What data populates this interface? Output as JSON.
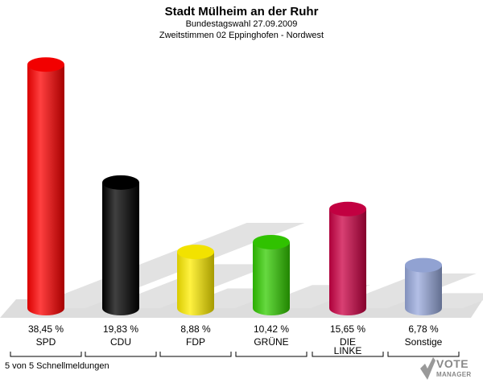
{
  "header": {
    "title": "Stadt Mülheim an der Ruhr",
    "subtitle1": "Bundestagswahl 27.09.2009",
    "subtitle2": "Zweitstimmen 02 Eppinghofen - Nordwest"
  },
  "footer": {
    "status": "5 von 5 Schnellmeldungen"
  },
  "logo": {
    "line1": "VOTE",
    "line2": "MANAGER"
  },
  "chart_data": {
    "type": "bar",
    "categories": [
      "SPD",
      "CDU",
      "FDP",
      "GRÜNE",
      "DIE LINKE",
      "Sonstige"
    ],
    "category_lines": [
      [
        "SPD"
      ],
      [
        "CDU"
      ],
      [
        "FDP"
      ],
      [
        "GRÜNE"
      ],
      [
        "DIE",
        "LINKE"
      ],
      [
        "Sonstige"
      ]
    ],
    "values": [
      38.45,
      19.83,
      8.88,
      10.42,
      15.65,
      6.78
    ],
    "value_labels": [
      "38,45 %",
      "19,83 %",
      "8,88 %",
      "10,42 %",
      "15,65 %",
      "6,78 %"
    ],
    "colors": [
      "#ff0000",
      "#000000",
      "#ffee00",
      "#33cc00",
      "#cc0044",
      "#99aadd"
    ],
    "ylim": [
      0,
      40
    ],
    "grid": false,
    "legend": "none"
  }
}
